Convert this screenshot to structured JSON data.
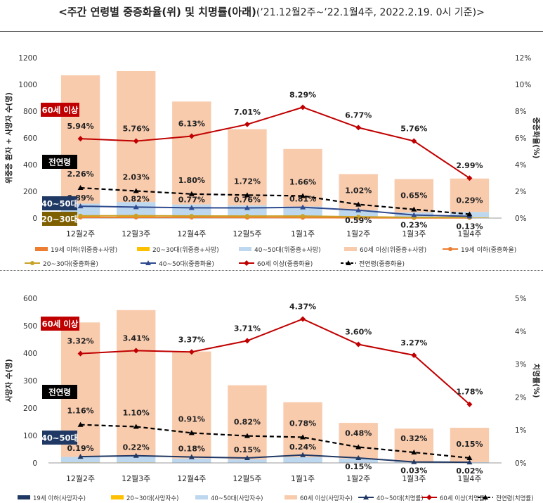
{
  "title": {
    "main": "<주간 연령별 중증화율(위) 및 치명률(아래)",
    "sub": "(’21.12월2주~’22.1월4주, 2022.2.19. 0시 기준)>"
  },
  "chart_data": [
    {
      "type": "bar",
      "categories": [
        "12월2주",
        "12월3주",
        "12월4주",
        "12월5주",
        "1월1주",
        "1월2주",
        "1월3주",
        "1월4주"
      ],
      "ylabel": "위중증 환자 + 사망자 수(명)",
      "y2label": "중증화율(%)",
      "ylim": [
        0,
        1200
      ],
      "y2lim": [
        0,
        12
      ],
      "yticks": [
        "0",
        "200",
        "400",
        "600",
        "800",
        "1000",
        "1200"
      ],
      "y2ticks": [
        "0%",
        "2%",
        "4%",
        "6%",
        "8%",
        "10%",
        "12%"
      ],
      "bar_series": [
        {
          "name": "19세 이하(위중증+사망)",
          "color": "#ed7d31",
          "values": [
            3,
            4,
            3,
            3,
            2,
            1,
            1,
            1
          ]
        },
        {
          "name": "20~30대(위중증+사망)",
          "color": "#ffc000",
          "values": [
            15,
            16,
            14,
            12,
            10,
            8,
            6,
            5
          ]
        },
        {
          "name": "40~50대(위중증+사망)",
          "color": "#bdd7ee",
          "values": [
            90,
            100,
            85,
            80,
            75,
            50,
            35,
            40
          ]
        },
        {
          "name": "60세 이상(위중증+사망)",
          "color": "#f8cbad",
          "values": [
            960,
            980,
            770,
            570,
            430,
            270,
            250,
            250
          ]
        }
      ],
      "line_series": [
        {
          "name": "19세 이하(중증화율)",
          "color": "#ed7d31",
          "marker": "circle",
          "dash": false,
          "values": [
            0.05,
            0.05,
            0.05,
            0.04,
            0.03,
            0.02,
            0.01,
            0.01
          ],
          "labels": []
        },
        {
          "name": "20~30대(중증화율)",
          "color": "#c9a227",
          "marker": "circle",
          "dash": false,
          "values": [
            0.17,
            0.18,
            0.16,
            0.15,
            0.15,
            0.1,
            0.05,
            0.04
          ],
          "labels": []
        },
        {
          "name": "40~50대(중증화율)",
          "color": "#2f4b8f",
          "marker": "triangle",
          "dash": false,
          "values": [
            0.89,
            0.82,
            0.77,
            0.76,
            0.81,
            0.59,
            0.23,
            0.13
          ],
          "labels": [
            "0.89%",
            "0.82%",
            "0.77%",
            "0.76%",
            "0.81%",
            "0.59%",
            "0.23%",
            "0.13%"
          ]
        },
        {
          "name": "60세 이상(중증화율)",
          "color": "#c00000",
          "marker": "diamond",
          "dash": false,
          "values": [
            5.94,
            5.76,
            6.13,
            7.01,
            8.29,
            6.77,
            5.76,
            2.99
          ],
          "labels": [
            "5.94%",
            "5.76%",
            "6.13%",
            "7.01%",
            "8.29%",
            "6.77%",
            "5.76%",
            "2.99%"
          ]
        },
        {
          "name": "전연령(중증화율)",
          "color": "#000000",
          "marker": "triangle",
          "dash": true,
          "values": [
            2.26,
            2.03,
            1.8,
            1.72,
            1.66,
            1.02,
            0.65,
            0.29
          ],
          "labels": [
            "2.26%",
            "2.03%",
            "1.80%",
            "1.72%",
            "1.66%",
            "1.02%",
            "0.65%",
            "0.29%"
          ]
        }
      ],
      "tags": [
        "60세 이상",
        "전연령",
        "40~50대",
        "20~30대"
      ]
    },
    {
      "type": "bar",
      "categories": [
        "12월2주",
        "12월3주",
        "12월4주",
        "12월5주",
        "1월1주",
        "1월2주",
        "1월3주",
        "1월4주"
      ],
      "ylabel": "사망자 수(명)",
      "y2label": "치명률(%)",
      "ylim": [
        0,
        600
      ],
      "y2lim": [
        0,
        5
      ],
      "yticks": [
        "0",
        "100",
        "200",
        "300",
        "400",
        "500",
        "600"
      ],
      "y2ticks": [
        "0%",
        "1%",
        "2%",
        "3%",
        "4%",
        "5%"
      ],
      "bar_series": [
        {
          "name": "19세 이하(사망자수)",
          "color": "#1f3864",
          "values": [
            0,
            0,
            0,
            0,
            0,
            0,
            0,
            0
          ]
        },
        {
          "name": "20~30대(사망자수)",
          "color": "#ffc000",
          "values": [
            2,
            2,
            1,
            1,
            1,
            1,
            0,
            0
          ]
        },
        {
          "name": "40~50대(사망자수)",
          "color": "#bdd7ee",
          "values": [
            20,
            25,
            15,
            12,
            20,
            15,
            5,
            3
          ]
        },
        {
          "name": "60세 이상(사망자수)",
          "color": "#f8cbad",
          "values": [
            490,
            530,
            390,
            270,
            200,
            130,
            120,
            125
          ]
        }
      ],
      "line_series": [
        {
          "name": "40~50대(치명률)",
          "color": "#203864",
          "marker": "triangle",
          "dash": false,
          "values": [
            0.19,
            0.22,
            0.18,
            0.15,
            0.24,
            0.15,
            0.03,
            0.02
          ],
          "labels": [
            "0.19%",
            "0.22%",
            "0.18%",
            "0.15%",
            "0.24%",
            "0.15%",
            "0.03%",
            "0.02%"
          ]
        },
        {
          "name": "60세 이상(치명률)",
          "color": "#c00000",
          "marker": "diamond",
          "dash": false,
          "values": [
            3.32,
            3.41,
            3.37,
            3.71,
            4.37,
            3.6,
            3.27,
            1.78
          ],
          "labels": [
            "3.32%",
            "3.41%",
            "3.37%",
            "3.71%",
            "4.37%",
            "3.60%",
            "3.27%",
            "1.78%"
          ]
        },
        {
          "name": "전연령(치명률)",
          "color": "#000000",
          "marker": "triangle",
          "dash": true,
          "values": [
            1.16,
            1.1,
            0.91,
            0.82,
            0.78,
            0.48,
            0.32,
            0.15
          ],
          "labels": [
            "1.16%",
            "1.10%",
            "0.91%",
            "0.82%",
            "0.78%",
            "0.48%",
            "0.32%",
            "0.15%"
          ]
        }
      ],
      "tags": [
        "60세 이상",
        "전연령",
        "40~50대"
      ]
    }
  ]
}
